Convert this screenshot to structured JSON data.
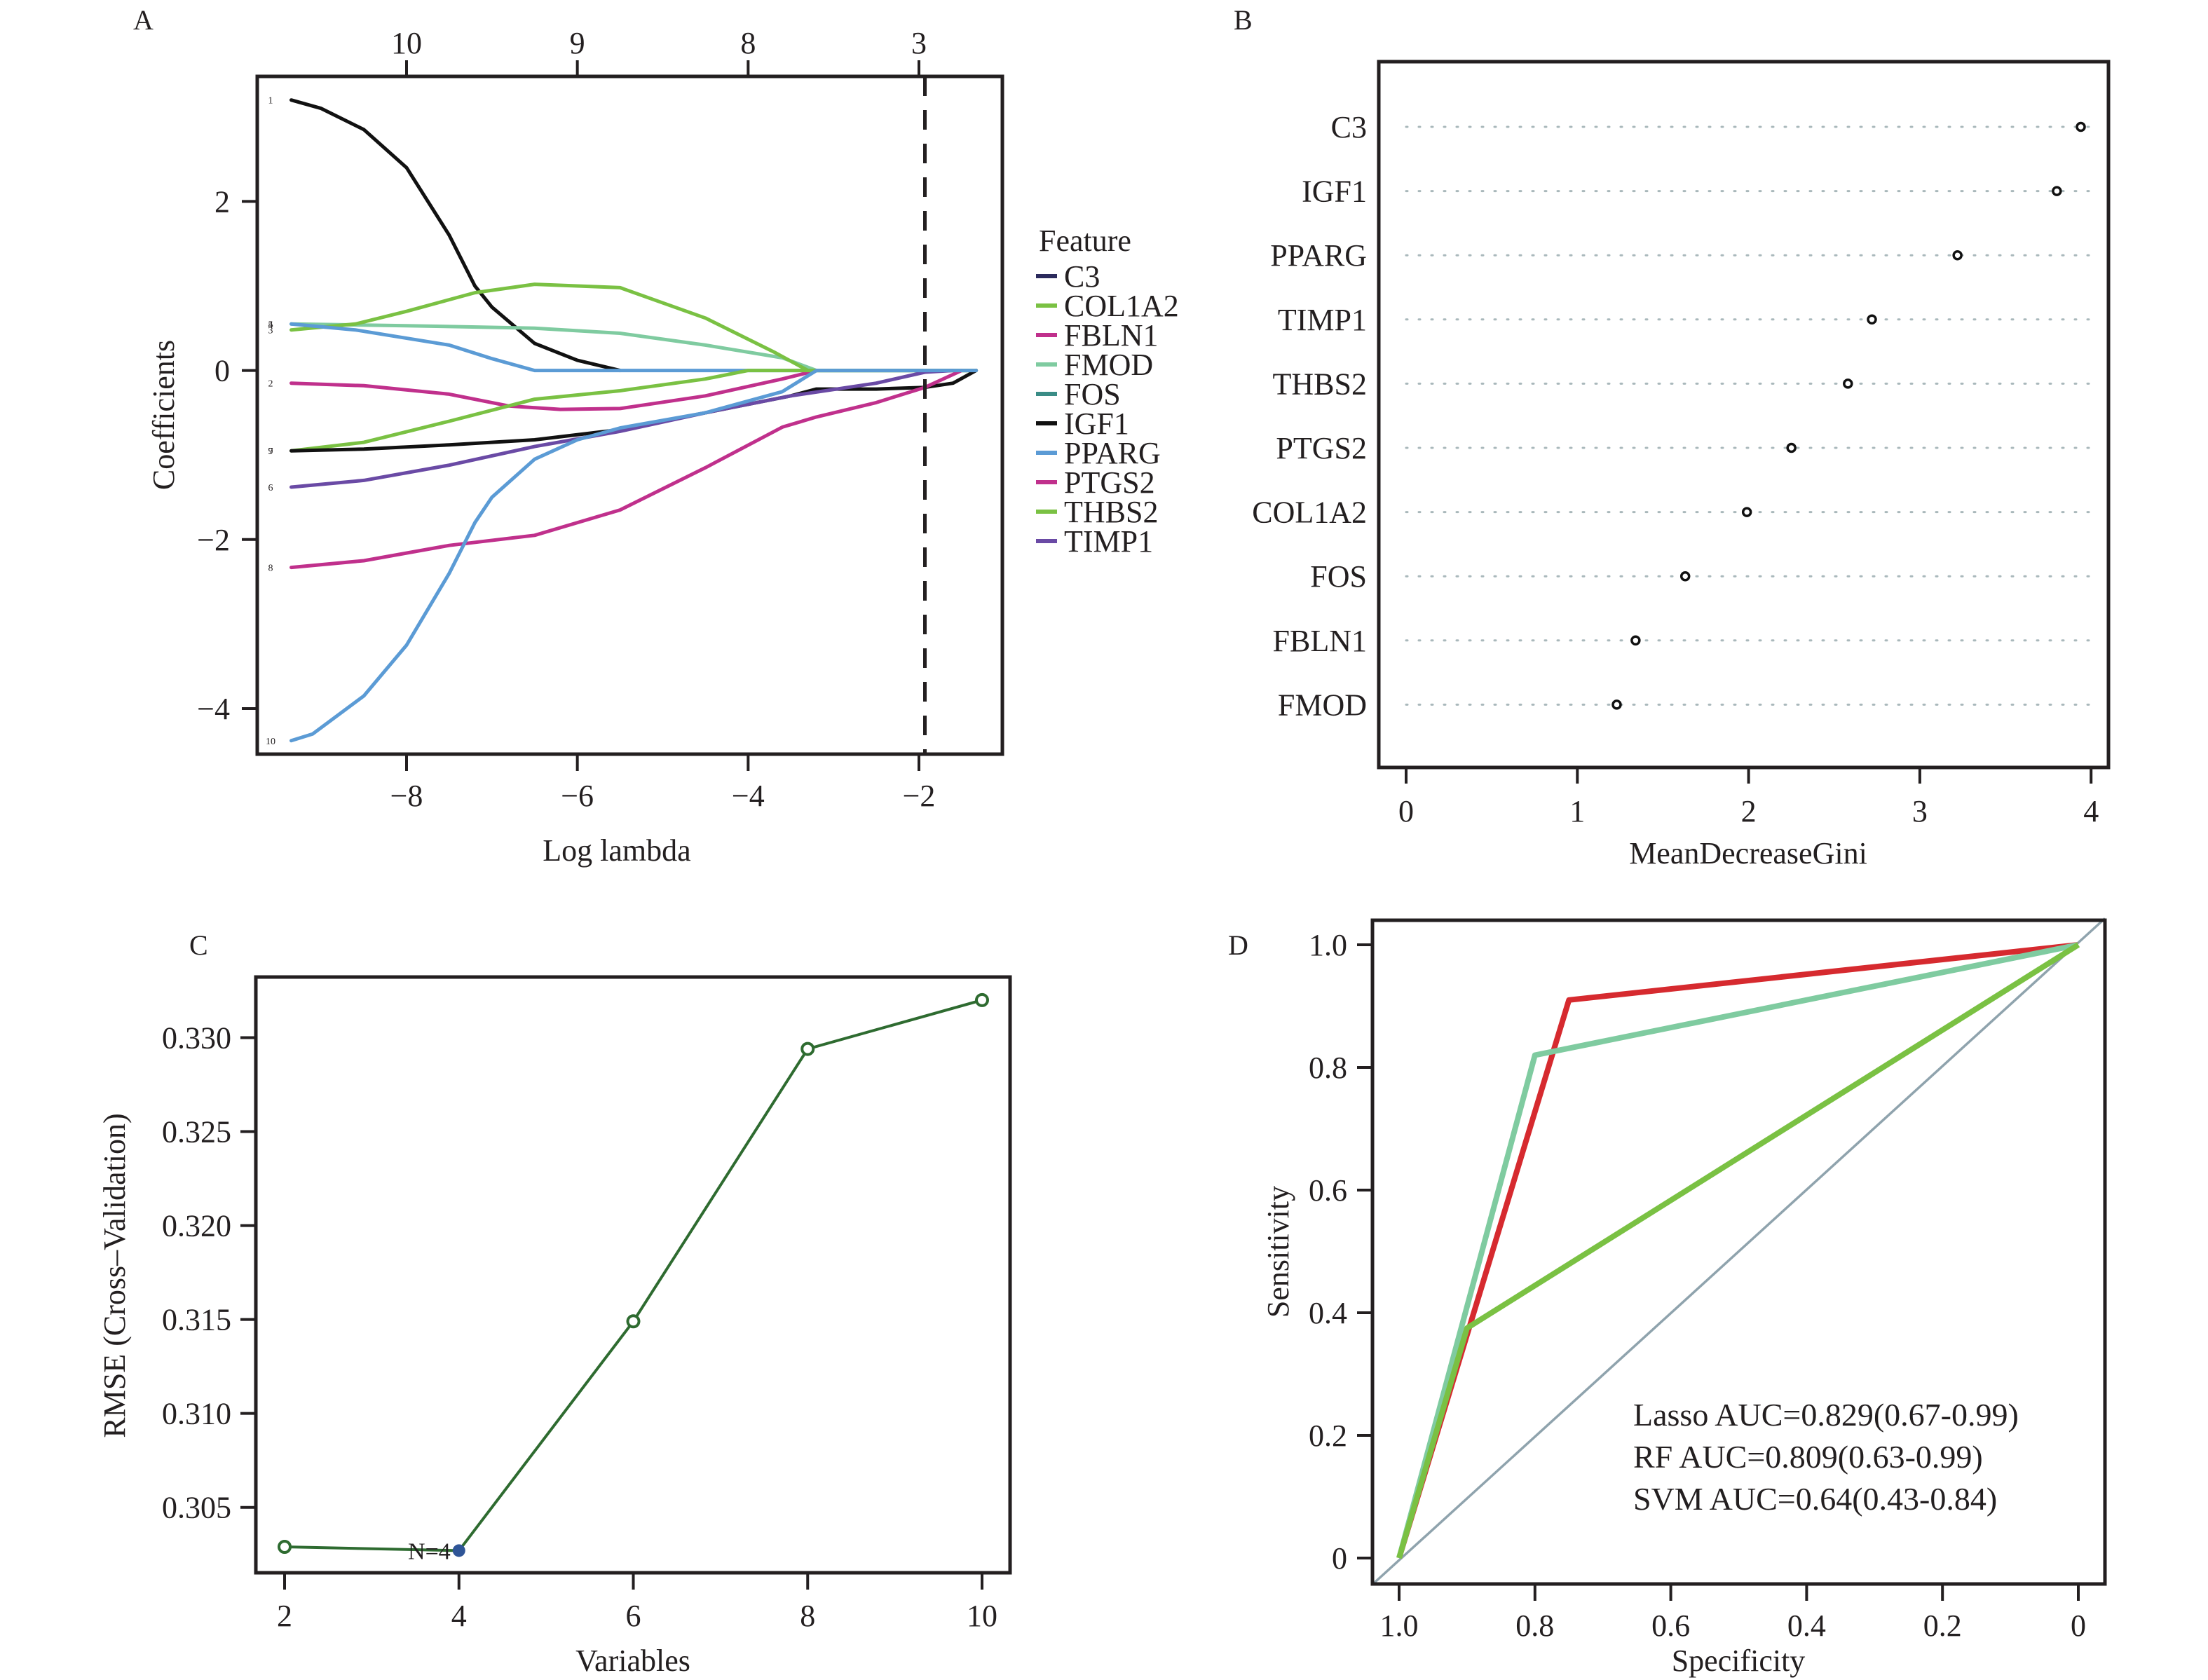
{
  "chart_data": [
    {
      "panel": "A",
      "type": "line",
      "xlabel": "Log lambda",
      "ylabel": "Coefficients",
      "xlim": [
        -9.75,
        -1.02
      ],
      "ylim": [
        -4.54,
        3.48
      ],
      "xticks": [
        -8,
        -6,
        -4,
        -2
      ],
      "xtick_labels": [
        "−8",
        "−6",
        "−4",
        "−2"
      ],
      "yticks": [
        -4,
        -2,
        0,
        2
      ],
      "ytick_labels": [
        "−4",
        "−2",
        "0",
        "2"
      ],
      "top_axis": {
        "positions": [
          -8,
          -6,
          -4,
          -2
        ],
        "labels": [
          "10",
          "9",
          "8",
          "3"
        ]
      },
      "vline": -1.93,
      "legend": {
        "title": "Feature",
        "placement": "right",
        "items": [
          {
            "label": "C3",
            "color": "#2b2a5c"
          },
          {
            "label": "COL1A2",
            "color": "#7ac143"
          },
          {
            "label": "FBLN1",
            "color": "#c0308c"
          },
          {
            "label": "FMOD",
            "color": "#7fcba0"
          },
          {
            "label": "FOS",
            "color": "#3a8c86"
          },
          {
            "label": "IGF1",
            "color": "#111111"
          },
          {
            "label": "PPARG",
            "color": "#5b9bd5"
          },
          {
            "label": "PTGS2",
            "color": "#c0308c"
          },
          {
            "label": "THBS2",
            "color": "#7ac143"
          },
          {
            "label": "TIMP1",
            "color": "#6a4aa5"
          }
        ]
      },
      "series": [
        {
          "label": "1",
          "color": "#111111",
          "x": [
            -9.35,
            -9,
            -8.5,
            -8,
            -7.5,
            -7.2,
            -7,
            -6.5,
            -6,
            -5.5
          ],
          "y": [
            3.2,
            3.1,
            2.85,
            2.4,
            1.6,
            1.0,
            0.75,
            0.32,
            0.12,
            0.0
          ]
        },
        {
          "label": "4",
          "color": "#7fcba0",
          "x": [
            -9.35,
            -8,
            -6.5,
            -5.5,
            -4.5,
            -3.6,
            -3.2,
            -1.33
          ],
          "y": [
            0.55,
            0.53,
            0.5,
            0.44,
            0.3,
            0.15,
            0.0,
            0.0
          ]
        },
        {
          "label": "3",
          "color": "#7ac143",
          "x": [
            -9.35,
            -8.6,
            -8,
            -7.2,
            -6.5,
            -5.5,
            -4.5,
            -3.7,
            -3.3,
            -1.33
          ],
          "y": [
            0.48,
            0.55,
            0.7,
            0.92,
            1.02,
            0.98,
            0.62,
            0.22,
            0.0,
            0.0
          ]
        },
        {
          "label": "5",
          "color": "#5b9bd5",
          "x": [
            -9.35,
            -8.6,
            -7.5,
            -7,
            -6.5,
            -1.33
          ],
          "y": [
            0.55,
            0.48,
            0.3,
            0.14,
            0.0,
            0.0
          ]
        },
        {
          "label": "2",
          "color": "#c0308c",
          "x": [
            -9.35,
            -8.5,
            -7.5,
            -6.8,
            -6.2,
            -5.5,
            -4.5,
            -3.6,
            -3.2
          ],
          "y": [
            -0.15,
            -0.18,
            -0.28,
            -0.42,
            -0.46,
            -0.45,
            -0.3,
            -0.1,
            0.0
          ]
        },
        {
          "label": "9",
          "color": "#7ac143",
          "x": [
            -9.35,
            -8.5,
            -7.5,
            -6.5,
            -5.5,
            -4.5,
            -4.0,
            -3.6,
            -1.33
          ],
          "y": [
            -0.95,
            -0.85,
            -0.6,
            -0.34,
            -0.24,
            -0.1,
            0.0,
            0.0,
            0.0
          ]
        },
        {
          "label": "7",
          "color": "#111111",
          "x": [
            -9.35,
            -8.5,
            -7.5,
            -6.5,
            -5.5,
            -4.5,
            -3.5,
            -3.2,
            -2.5,
            -1.93,
            -1.6,
            -1.33
          ],
          "y": [
            -0.95,
            -0.93,
            -0.88,
            -0.82,
            -0.7,
            -0.5,
            -0.3,
            -0.22,
            -0.22,
            -0.2,
            -0.15,
            0.0
          ]
        },
        {
          "label": "6",
          "color": "#6a4aa5",
          "x": [
            -9.35,
            -8.5,
            -7.5,
            -6.5,
            -5.5,
            -4.5,
            -3.5,
            -2.5,
            -1.93,
            -1.6
          ],
          "y": [
            -1.38,
            -1.3,
            -1.12,
            -0.9,
            -0.72,
            -0.5,
            -0.3,
            -0.15,
            -0.02,
            0.0
          ]
        },
        {
          "label": "8",
          "color": "#c0308c",
          "x": [
            -9.35,
            -8.5,
            -7.5,
            -6.5,
            -5.5,
            -4.5,
            -3.6,
            -3.2,
            -2.5,
            -1.93,
            -1.5
          ],
          "y": [
            -2.33,
            -2.25,
            -2.07,
            -1.95,
            -1.65,
            -1.15,
            -0.67,
            -0.55,
            -0.38,
            -0.2,
            0.0
          ]
        },
        {
          "label": "10",
          "color": "#5b9bd5",
          "x": [
            -9.35,
            -9.1,
            -8.5,
            -8,
            -7.5,
            -7.2,
            -7,
            -6.5,
            -6,
            -5.5,
            -4.5,
            -3.6,
            -3.2,
            -1.33
          ],
          "y": [
            -4.38,
            -4.3,
            -3.85,
            -3.25,
            -2.4,
            -1.8,
            -1.5,
            -1.05,
            -0.82,
            -0.68,
            -0.5,
            -0.25,
            0.0,
            0.0
          ]
        }
      ]
    },
    {
      "panel": "B",
      "type": "scatter",
      "xlabel": "MeanDecreaseGini",
      "ylabel": "",
      "xlim": [
        0,
        4
      ],
      "xticks": [
        0,
        1,
        2,
        3,
        4
      ],
      "xtick_labels": [
        "0",
        "1",
        "2",
        "3",
        "4"
      ],
      "categories": [
        "C3",
        "IGF1",
        "PPARG",
        "TIMP1",
        "THBS2",
        "PTGS2",
        "COL1A2",
        "FOS",
        "FBLN1",
        "FMOD"
      ],
      "values": [
        3.94,
        3.8,
        3.22,
        2.72,
        2.58,
        2.25,
        1.99,
        1.63,
        1.34,
        1.23
      ]
    },
    {
      "panel": "C",
      "type": "line",
      "xlabel": "Variables",
      "ylabel": "RMSE (Cross–Validation)",
      "x": [
        2,
        4,
        6,
        8,
        10
      ],
      "values": [
        0.3029,
        0.3027,
        0.3149,
        0.3294,
        0.332
      ],
      "xticks": [
        2,
        4,
        6,
        8,
        10
      ],
      "xtick_labels": [
        "2",
        "4",
        "6",
        "8",
        "10"
      ],
      "yticks": [
        0.305,
        0.31,
        0.315,
        0.32,
        0.325,
        0.33
      ],
      "ytick_labels": [
        "0.305",
        "0.310",
        "0.315",
        "0.320",
        "0.325",
        "0.330"
      ],
      "highlight": {
        "x": 4,
        "label": "N=4"
      },
      "line_color": "#2e6b30",
      "highlight_color": "#2f5597",
      "annotation_color": "#c0308c"
    },
    {
      "panel": "D",
      "type": "line",
      "xlabel": "Specificity",
      "ylabel": "Sensitivity",
      "xlim": [
        1.0,
        0.0
      ],
      "ylim": [
        0,
        1.0
      ],
      "xticks": [
        1.0,
        0.8,
        0.6,
        0.4,
        0.2,
        0
      ],
      "xtick_labels": [
        "1.0",
        "0.8",
        "0.6",
        "0.4",
        "0.2",
        "0"
      ],
      "yticks": [
        0,
        0.2,
        0.4,
        0.6,
        0.8,
        1.0
      ],
      "ytick_labels": [
        "0",
        "0.2",
        "0.4",
        "0.6",
        "0.8",
        "1.0"
      ],
      "diagonal_color": "#8fa3ad",
      "series": [
        {
          "name": "Lasso",
          "label": "Lasso AUC=0.829(0.67-0.99)",
          "color": "#d62a2f",
          "specificity": [
            1.0,
            0.75,
            0.0
          ],
          "sensitivity": [
            0.0,
            0.91,
            1.0
          ]
        },
        {
          "name": "RF",
          "label": "RF AUC=0.809(0.63-0.99)",
          "color": "#7fcba0",
          "specificity": [
            1.0,
            0.8,
            0.0
          ],
          "sensitivity": [
            0.0,
            0.82,
            1.0
          ]
        },
        {
          "name": "SVM",
          "label": "SVM AUC=0.64(0.43-0.84)",
          "color": "#7ac143",
          "specificity": [
            1.0,
            0.9,
            0.0
          ],
          "sensitivity": [
            0.0,
            0.375,
            1.0
          ]
        }
      ]
    }
  ],
  "panel_labels": [
    "A",
    "B",
    "C",
    "D"
  ]
}
